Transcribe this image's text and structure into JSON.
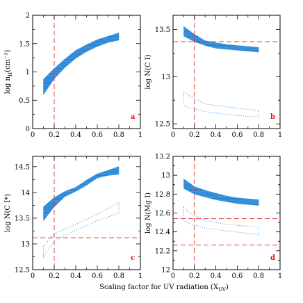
{
  "figure": {
    "xlabel": "Scaling factor for UV radiation (X",
    "xlabel_sub": "UV",
    "xlabel_close": ")"
  },
  "chart_data": [
    {
      "type": "area",
      "panel": "a",
      "ylabel": "log n",
      "ylabel_sub": "H",
      "ylabel_rest": "(cm⁻³)",
      "xlim": [
        0,
        1
      ],
      "ylim": [
        0,
        2
      ],
      "xticks": [
        0,
        0.2,
        0.4,
        0.6,
        0.8,
        1
      ],
      "yticks": [
        0,
        0.5,
        1,
        1.5,
        2
      ],
      "ytick_labels": [
        "0",
        "0.5",
        "1",
        "1.5",
        "2"
      ],
      "vlines": [
        0.2
      ],
      "hlines": [],
      "filled_band": {
        "x": [
          0.1,
          0.2,
          0.3,
          0.4,
          0.5,
          0.6,
          0.7,
          0.8
        ],
        "lower": [
          0.6,
          0.88,
          1.08,
          1.24,
          1.36,
          1.45,
          1.52,
          1.56
        ],
        "upper": [
          0.87,
          1.06,
          1.23,
          1.38,
          1.48,
          1.57,
          1.63,
          1.69
        ]
      },
      "dotted_region": null,
      "colors": {
        "band": "#3d9ae6",
        "vline": "#e04040",
        "label": "#ff0000"
      }
    },
    {
      "type": "area",
      "panel": "b",
      "ylabel": "log N(C I)",
      "ylabel_sub": "",
      "ylabel_rest": "",
      "xlim": [
        0,
        1
      ],
      "ylim": [
        12.45,
        13.65
      ],
      "xticks": [
        0,
        0.2,
        0.4,
        0.6,
        0.8,
        1
      ],
      "yticks": [
        12.5,
        13,
        13.5
      ],
      "ytick_labels": [
        "12.5",
        "13",
        "13.5"
      ],
      "vlines": [
        0.2
      ],
      "hlines": [
        13.37
      ],
      "filled_band": {
        "x": [
          0.1,
          0.2,
          0.3,
          0.4,
          0.5,
          0.6,
          0.7,
          0.8
        ],
        "lower": [
          13.43,
          13.37,
          13.33,
          13.3,
          13.29,
          13.28,
          13.27,
          13.26
        ],
        "upper": [
          13.53,
          13.45,
          13.38,
          13.36,
          13.34,
          13.33,
          13.32,
          13.31
        ]
      },
      "dotted_region": [
        [
          0.1,
          12.84
        ],
        [
          0.15,
          12.8
        ],
        [
          0.3,
          12.71
        ],
        [
          0.5,
          12.68
        ],
        [
          0.8,
          12.64
        ],
        [
          0.8,
          12.57
        ],
        [
          0.5,
          12.6
        ],
        [
          0.3,
          12.63
        ],
        [
          0.15,
          12.67
        ],
        [
          0.1,
          12.7
        ]
      ],
      "colors": {
        "band": "#3d9ae6",
        "vline": "#e04040",
        "label": "#ff0000"
      }
    },
    {
      "type": "area",
      "panel": "c",
      "ylabel": "log N(C I*)",
      "ylabel_sub": "",
      "ylabel_rest": "",
      "xlim": [
        0,
        1
      ],
      "ylim": [
        12.5,
        14.7
      ],
      "xticks": [
        0,
        0.2,
        0.4,
        0.6,
        0.8,
        1
      ],
      "yticks": [
        12.5,
        13,
        13.5,
        14,
        14.5
      ],
      "ytick_labels": [
        "12.5",
        "13",
        "13.5",
        "14",
        "14.5"
      ],
      "vlines": [
        0.2
      ],
      "hlines": [
        13.12
      ],
      "filled_band": {
        "x": [
          0.1,
          0.2,
          0.3,
          0.4,
          0.5,
          0.6,
          0.7,
          0.8
        ],
        "lower": [
          13.45,
          13.72,
          13.92,
          14.02,
          14.14,
          14.28,
          14.33,
          14.35
        ],
        "upper": [
          13.72,
          13.9,
          14.02,
          14.1,
          14.24,
          14.36,
          14.43,
          14.5
        ]
      },
      "dotted_region": [
        [
          0.1,
          12.95
        ],
        [
          0.2,
          13.2
        ],
        [
          0.4,
          13.38
        ],
        [
          0.6,
          13.58
        ],
        [
          0.8,
          13.8
        ],
        [
          0.8,
          13.6
        ],
        [
          0.6,
          13.45
        ],
        [
          0.4,
          13.27
        ],
        [
          0.2,
          13.05
        ],
        [
          0.1,
          12.75
        ]
      ],
      "colors": {
        "band": "#3d9ae6",
        "vline": "#e04040",
        "label": "#ff0000"
      }
    },
    {
      "type": "area",
      "panel": "d",
      "ylabel": "log N(Mg I)",
      "ylabel_sub": "",
      "ylabel_rest": "",
      "xlim": [
        0,
        1
      ],
      "ylim": [
        12,
        13.2
      ],
      "xticks": [
        0,
        0.2,
        0.4,
        0.6,
        0.8,
        1
      ],
      "yticks": [
        12,
        12.2,
        12.4,
        12.6,
        12.8,
        13,
        13.2
      ],
      "ytick_labels": [
        "12",
        "12.2",
        "12.4",
        "12.6",
        "12.8",
        "13",
        "13.2"
      ],
      "vlines": [
        0.2
      ],
      "hlines": [
        12.54,
        12.26
      ],
      "filled_band": {
        "x": [
          0.1,
          0.2,
          0.3,
          0.4,
          0.5,
          0.6,
          0.7,
          0.8
        ],
        "lower": [
          12.86,
          12.8,
          12.77,
          12.74,
          12.72,
          12.7,
          12.69,
          12.68
        ],
        "upper": [
          12.96,
          12.88,
          12.84,
          12.81,
          12.78,
          12.76,
          12.75,
          12.74
        ]
      },
      "dotted_region": [
        [
          0.1,
          12.67
        ],
        [
          0.15,
          12.6
        ],
        [
          0.3,
          12.52
        ],
        [
          0.5,
          12.48
        ],
        [
          0.8,
          12.45
        ],
        [
          0.8,
          12.37
        ],
        [
          0.5,
          12.41
        ],
        [
          0.3,
          12.44
        ],
        [
          0.15,
          12.49
        ],
        [
          0.1,
          12.52
        ]
      ],
      "colors": {
        "band": "#3d9ae6",
        "vline": "#e04040",
        "label": "#ff0000"
      }
    }
  ]
}
